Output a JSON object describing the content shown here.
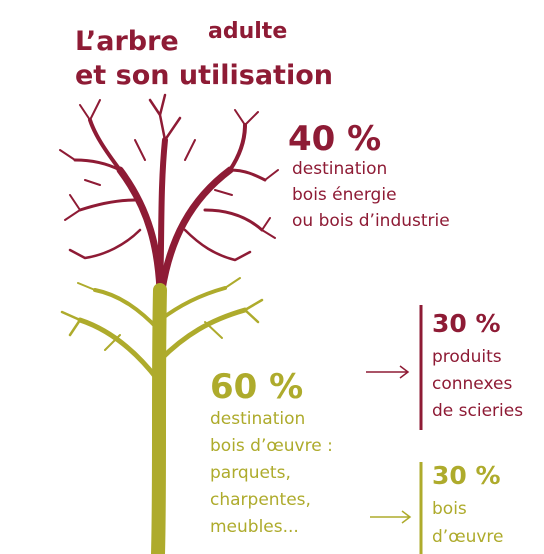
{
  "title": {
    "line1": "L’arbre",
    "raised": "adulte",
    "line2": "et son utilisation"
  },
  "top": {
    "percent": "40 %",
    "lines": [
      "destination",
      "bois énergie",
      "ou bois d’industrie"
    ]
  },
  "bottom": {
    "percent": "60 %",
    "lines": [
      "destination",
      "bois d’œuvre :",
      "parquets,",
      "charpentes,",
      "meubles..."
    ]
  },
  "right_top": {
    "percent": "30 %",
    "lines": [
      "produits",
      "connexes",
      "de scieries"
    ]
  },
  "right_bottom": {
    "percent": "30 %",
    "lines": [
      "bois",
      "d’œuvre"
    ]
  }
}
